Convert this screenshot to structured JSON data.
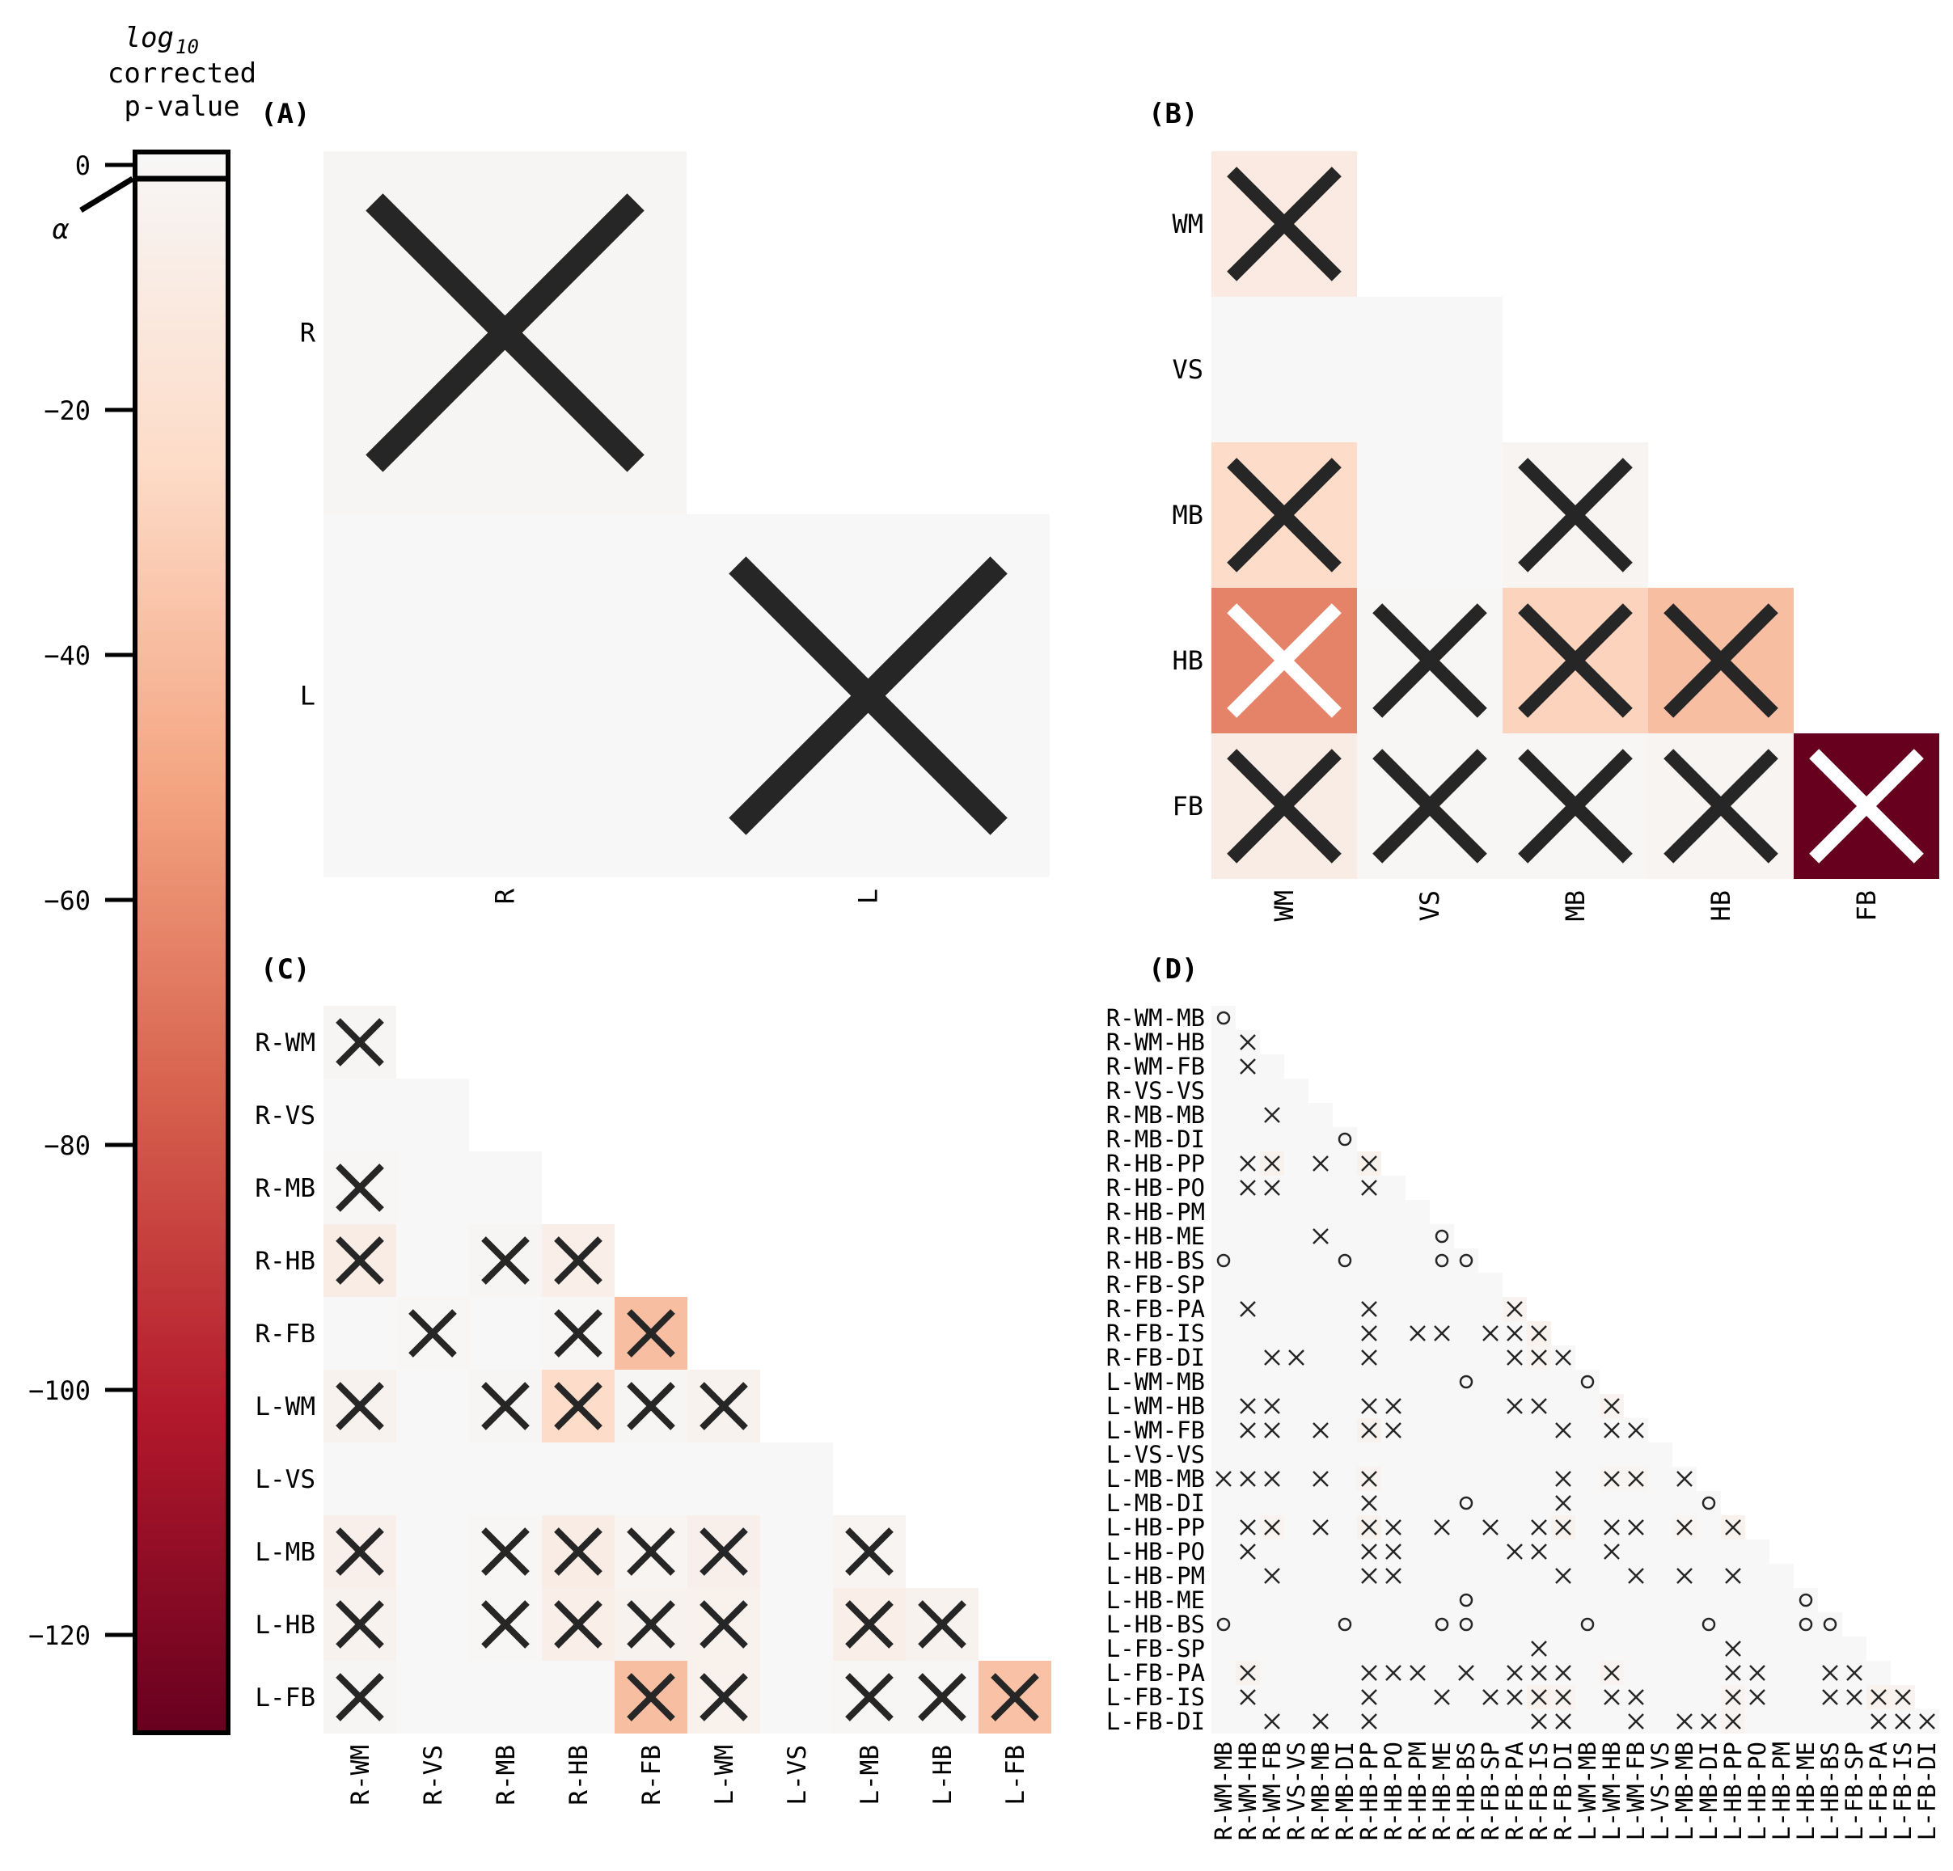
{
  "colorbar": {
    "title_parts": [
      "log",
      "10",
      "corrected",
      "p-value"
    ],
    "alpha_label": "α",
    "ticks": [
      0,
      -20,
      -40,
      -60,
      -80,
      -100,
      -120
    ],
    "range": [
      -130,
      0
    ],
    "colormap_stops": [
      "#67001f",
      "#b2182b",
      "#d6604d",
      "#f4a582",
      "#fddbc7",
      "#f7f7f7"
    ],
    "colormap": "RdBu (lower half, dark red to white)"
  },
  "chart_data": [
    {
      "panel": "(A)",
      "type": "heatmap",
      "categories": [
        "R",
        "L"
      ],
      "cells": [
        {
          "row": 0,
          "col": 0,
          "value": -2,
          "mark": "x"
        },
        {
          "row": 1,
          "col": 0,
          "value": 0,
          "mark": ""
        },
        {
          "row": 1,
          "col": 1,
          "value": 0,
          "mark": "x"
        }
      ]
    },
    {
      "panel": "(B)",
      "type": "heatmap",
      "categories": [
        "WM",
        "VS",
        "MB",
        "HB",
        "FB"
      ],
      "cells": [
        {
          "row": 0,
          "col": 0,
          "value": -12,
          "mark": "x"
        },
        {
          "row": 1,
          "col": 0,
          "value": 0,
          "mark": ""
        },
        {
          "row": 1,
          "col": 1,
          "value": 0,
          "mark": ""
        },
        {
          "row": 2,
          "col": 0,
          "value": -25,
          "mark": "x"
        },
        {
          "row": 2,
          "col": 1,
          "value": 0,
          "mark": ""
        },
        {
          "row": 2,
          "col": 2,
          "value": -3,
          "mark": "x"
        },
        {
          "row": 3,
          "col": 0,
          "value": -65,
          "mark": "x"
        },
        {
          "row": 3,
          "col": 1,
          "value": -1,
          "mark": "x"
        },
        {
          "row": 3,
          "col": 2,
          "value": -30,
          "mark": "x"
        },
        {
          "row": 3,
          "col": 3,
          "value": -40,
          "mark": "x"
        },
        {
          "row": 4,
          "col": 0,
          "value": -10,
          "mark": "x"
        },
        {
          "row": 4,
          "col": 1,
          "value": -1,
          "mark": "x"
        },
        {
          "row": 4,
          "col": 2,
          "value": -1,
          "mark": "x"
        },
        {
          "row": 4,
          "col": 3,
          "value": -3,
          "mark": "x"
        },
        {
          "row": 4,
          "col": 4,
          "value": -130,
          "mark": "x"
        }
      ]
    },
    {
      "panel": "(C)",
      "type": "heatmap",
      "categories": [
        "R-WM",
        "R-VS",
        "R-MB",
        "R-HB",
        "R-FB",
        "L-WM",
        "L-VS",
        "L-MB",
        "L-HB",
        "L-FB"
      ],
      "cells": [
        {
          "row": 0,
          "col": 0,
          "value": -2,
          "mark": "x"
        },
        {
          "row": 1,
          "col": 0,
          "value": 0,
          "mark": ""
        },
        {
          "row": 1,
          "col": 1,
          "value": 0,
          "mark": ""
        },
        {
          "row": 2,
          "col": 0,
          "value": -1,
          "mark": "x"
        },
        {
          "row": 2,
          "col": 1,
          "value": 0,
          "mark": ""
        },
        {
          "row": 2,
          "col": 2,
          "value": 0,
          "mark": ""
        },
        {
          "row": 3,
          "col": 0,
          "value": -10,
          "mark": "x"
        },
        {
          "row": 3,
          "col": 1,
          "value": 0,
          "mark": ""
        },
        {
          "row": 3,
          "col": 2,
          "value": -2,
          "mark": "x"
        },
        {
          "row": 3,
          "col": 3,
          "value": -8,
          "mark": "x"
        },
        {
          "row": 4,
          "col": 0,
          "value": 0,
          "mark": ""
        },
        {
          "row": 4,
          "col": 1,
          "value": -1,
          "mark": "x"
        },
        {
          "row": 4,
          "col": 2,
          "value": 0,
          "mark": ""
        },
        {
          "row": 4,
          "col": 3,
          "value": -1,
          "mark": "x"
        },
        {
          "row": 4,
          "col": 4,
          "value": -40,
          "mark": "x"
        },
        {
          "row": 5,
          "col": 0,
          "value": -5,
          "mark": "x"
        },
        {
          "row": 5,
          "col": 1,
          "value": 0,
          "mark": ""
        },
        {
          "row": 5,
          "col": 2,
          "value": -2,
          "mark": "x"
        },
        {
          "row": 5,
          "col": 3,
          "value": -25,
          "mark": "x"
        },
        {
          "row": 5,
          "col": 4,
          "value": -2,
          "mark": "x"
        },
        {
          "row": 5,
          "col": 5,
          "value": -5,
          "mark": "x"
        },
        {
          "row": 6,
          "col": 0,
          "value": 0,
          "mark": ""
        },
        {
          "row": 6,
          "col": 1,
          "value": 0,
          "mark": ""
        },
        {
          "row": 6,
          "col": 2,
          "value": 0,
          "mark": ""
        },
        {
          "row": 6,
          "col": 3,
          "value": 0,
          "mark": ""
        },
        {
          "row": 6,
          "col": 4,
          "value": 0,
          "mark": ""
        },
        {
          "row": 6,
          "col": 5,
          "value": 0,
          "mark": ""
        },
        {
          "row": 6,
          "col": 6,
          "value": 0,
          "mark": ""
        },
        {
          "row": 7,
          "col": 0,
          "value": -7,
          "mark": "x"
        },
        {
          "row": 7,
          "col": 1,
          "value": 0,
          "mark": ""
        },
        {
          "row": 7,
          "col": 2,
          "value": -1,
          "mark": "x"
        },
        {
          "row": 7,
          "col": 3,
          "value": -10,
          "mark": "x"
        },
        {
          "row": 7,
          "col": 4,
          "value": -3,
          "mark": "x"
        },
        {
          "row": 7,
          "col": 5,
          "value": -7,
          "mark": "x"
        },
        {
          "row": 7,
          "col": 6,
          "value": 0,
          "mark": ""
        },
        {
          "row": 7,
          "col": 7,
          "value": -3,
          "mark": "x"
        },
        {
          "row": 8,
          "col": 0,
          "value": -5,
          "mark": "x"
        },
        {
          "row": 8,
          "col": 1,
          "value": 0,
          "mark": ""
        },
        {
          "row": 8,
          "col": 2,
          "value": -1,
          "mark": "x"
        },
        {
          "row": 8,
          "col": 3,
          "value": -8,
          "mark": "x"
        },
        {
          "row": 8,
          "col": 4,
          "value": -5,
          "mark": "x"
        },
        {
          "row": 8,
          "col": 5,
          "value": -6,
          "mark": "x"
        },
        {
          "row": 8,
          "col": 6,
          "value": 0,
          "mark": ""
        },
        {
          "row": 8,
          "col": 7,
          "value": -8,
          "mark": "x"
        },
        {
          "row": 8,
          "col": 8,
          "value": -5,
          "mark": "x"
        },
        {
          "row": 9,
          "col": 0,
          "value": -2,
          "mark": "x"
        },
        {
          "row": 9,
          "col": 1,
          "value": 0,
          "mark": ""
        },
        {
          "row": 9,
          "col": 2,
          "value": 0,
          "mark": ""
        },
        {
          "row": 9,
          "col": 3,
          "value": 0,
          "mark": ""
        },
        {
          "row": 9,
          "col": 4,
          "value": -40,
          "mark": "x"
        },
        {
          "row": 9,
          "col": 5,
          "value": -6,
          "mark": "x"
        },
        {
          "row": 9,
          "col": 6,
          "value": 0,
          "mark": ""
        },
        {
          "row": 9,
          "col": 7,
          "value": -1,
          "mark": "x"
        },
        {
          "row": 9,
          "col": 8,
          "value": -1,
          "mark": "x"
        },
        {
          "row": 9,
          "col": 9,
          "value": -38,
          "mark": "x"
        }
      ]
    },
    {
      "panel": "(D)",
      "type": "heatmap",
      "categories": [
        "R-WM-MB",
        "R-WM-HB",
        "R-WM-FB",
        "R-VS-VS",
        "R-MB-MB",
        "R-MB-DI",
        "R-HB-PP",
        "R-HB-PO",
        "R-HB-PM",
        "R-HB-ME",
        "R-HB-BS",
        "R-FB-SP",
        "R-FB-PA",
        "R-FB-IS",
        "R-FB-DI",
        "L-WM-MB",
        "L-WM-HB",
        "L-WM-FB",
        "L-VS-VS",
        "L-MB-MB",
        "L-MB-DI",
        "L-HB-PP",
        "L-HB-PO",
        "L-HB-PM",
        "L-HB-ME",
        "L-HB-BS",
        "L-FB-SP",
        "L-FB-PA",
        "L-FB-IS",
        "L-FB-DI"
      ],
      "marks": [
        [
          0,
          0,
          "o"
        ],
        [
          1,
          1,
          "x"
        ],
        [
          2,
          1,
          "x"
        ],
        [
          4,
          2,
          "x"
        ],
        [
          5,
          5,
          "o"
        ],
        [
          6,
          1,
          "x"
        ],
        [
          6,
          2,
          "x"
        ],
        [
          6,
          4,
          "x"
        ],
        [
          6,
          6,
          "x"
        ],
        [
          7,
          1,
          "x"
        ],
        [
          7,
          2,
          "x"
        ],
        [
          7,
          6,
          "x"
        ],
        [
          9,
          4,
          "x"
        ],
        [
          9,
          9,
          "o"
        ],
        [
          10,
          0,
          "o"
        ],
        [
          10,
          5,
          "o"
        ],
        [
          10,
          9,
          "o"
        ],
        [
          10,
          10,
          "o"
        ],
        [
          12,
          1,
          "x"
        ],
        [
          12,
          6,
          "x"
        ],
        [
          12,
          12,
          "x"
        ],
        [
          13,
          6,
          "x"
        ],
        [
          13,
          8,
          "x"
        ],
        [
          13,
          9,
          "x"
        ],
        [
          13,
          11,
          "x"
        ],
        [
          13,
          12,
          "x"
        ],
        [
          13,
          13,
          "x"
        ],
        [
          14,
          2,
          "x"
        ],
        [
          14,
          3,
          "x"
        ],
        [
          14,
          6,
          "x"
        ],
        [
          14,
          12,
          "x"
        ],
        [
          14,
          13,
          "x"
        ],
        [
          14,
          14,
          "x"
        ],
        [
          15,
          10,
          "o"
        ],
        [
          15,
          15,
          "o"
        ],
        [
          16,
          1,
          "x"
        ],
        [
          16,
          2,
          "x"
        ],
        [
          16,
          6,
          "x"
        ],
        [
          16,
          7,
          "x"
        ],
        [
          16,
          12,
          "x"
        ],
        [
          16,
          13,
          "x"
        ],
        [
          16,
          16,
          "x"
        ],
        [
          17,
          1,
          "x"
        ],
        [
          17,
          2,
          "x"
        ],
        [
          17,
          4,
          "x"
        ],
        [
          17,
          6,
          "x"
        ],
        [
          17,
          7,
          "x"
        ],
        [
          17,
          14,
          "x"
        ],
        [
          17,
          16,
          "x"
        ],
        [
          17,
          17,
          "x"
        ],
        [
          19,
          0,
          "x"
        ],
        [
          19,
          1,
          "x"
        ],
        [
          19,
          2,
          "x"
        ],
        [
          19,
          4,
          "x"
        ],
        [
          19,
          6,
          "x"
        ],
        [
          19,
          14,
          "x"
        ],
        [
          19,
          16,
          "x"
        ],
        [
          19,
          17,
          "x"
        ],
        [
          19,
          19,
          "x"
        ],
        [
          20,
          6,
          "x"
        ],
        [
          20,
          10,
          "o"
        ],
        [
          20,
          14,
          "x"
        ],
        [
          20,
          20,
          "o"
        ],
        [
          21,
          1,
          "x"
        ],
        [
          21,
          2,
          "x"
        ],
        [
          21,
          4,
          "x"
        ],
        [
          21,
          6,
          "x"
        ],
        [
          21,
          7,
          "x"
        ],
        [
          21,
          9,
          "x"
        ],
        [
          21,
          11,
          "x"
        ],
        [
          21,
          13,
          "x"
        ],
        [
          21,
          14,
          "x"
        ],
        [
          21,
          16,
          "x"
        ],
        [
          21,
          17,
          "x"
        ],
        [
          21,
          19,
          "x"
        ],
        [
          21,
          21,
          "x"
        ],
        [
          22,
          1,
          "x"
        ],
        [
          22,
          6,
          "x"
        ],
        [
          22,
          7,
          "x"
        ],
        [
          22,
          12,
          "x"
        ],
        [
          22,
          13,
          "x"
        ],
        [
          22,
          16,
          "x"
        ],
        [
          23,
          2,
          "x"
        ],
        [
          23,
          6,
          "x"
        ],
        [
          23,
          7,
          "x"
        ],
        [
          23,
          14,
          "x"
        ],
        [
          23,
          17,
          "x"
        ],
        [
          23,
          19,
          "x"
        ],
        [
          23,
          21,
          "x"
        ],
        [
          24,
          10,
          "o"
        ],
        [
          24,
          24,
          "o"
        ],
        [
          25,
          0,
          "o"
        ],
        [
          25,
          5,
          "o"
        ],
        [
          25,
          9,
          "o"
        ],
        [
          25,
          10,
          "o"
        ],
        [
          25,
          15,
          "o"
        ],
        [
          25,
          20,
          "o"
        ],
        [
          25,
          24,
          "o"
        ],
        [
          25,
          25,
          "o"
        ],
        [
          26,
          13,
          "x"
        ],
        [
          26,
          21,
          "x"
        ],
        [
          27,
          1,
          "x"
        ],
        [
          27,
          6,
          "x"
        ],
        [
          27,
          7,
          "x"
        ],
        [
          27,
          8,
          "x"
        ],
        [
          27,
          10,
          "x"
        ],
        [
          27,
          12,
          "x"
        ],
        [
          27,
          13,
          "x"
        ],
        [
          27,
          14,
          "x"
        ],
        [
          27,
          16,
          "x"
        ],
        [
          27,
          21,
          "x"
        ],
        [
          27,
          22,
          "x"
        ],
        [
          27,
          25,
          "x"
        ],
        [
          27,
          26,
          "x"
        ],
        [
          28,
          1,
          "x"
        ],
        [
          28,
          6,
          "x"
        ],
        [
          28,
          9,
          "x"
        ],
        [
          28,
          11,
          "x"
        ],
        [
          28,
          12,
          "x"
        ],
        [
          28,
          13,
          "x"
        ],
        [
          28,
          14,
          "x"
        ],
        [
          28,
          16,
          "x"
        ],
        [
          28,
          17,
          "x"
        ],
        [
          28,
          21,
          "x"
        ],
        [
          28,
          22,
          "x"
        ],
        [
          28,
          25,
          "x"
        ],
        [
          28,
          26,
          "x"
        ],
        [
          28,
          27,
          "x"
        ],
        [
          28,
          28,
          "x"
        ],
        [
          29,
          2,
          "x"
        ],
        [
          29,
          4,
          "x"
        ],
        [
          29,
          6,
          "x"
        ],
        [
          29,
          13,
          "x"
        ],
        [
          29,
          14,
          "x"
        ],
        [
          29,
          17,
          "x"
        ],
        [
          29,
          19,
          "x"
        ],
        [
          29,
          20,
          "x"
        ],
        [
          29,
          21,
          "x"
        ],
        [
          29,
          27,
          "x"
        ],
        [
          29,
          28,
          "x"
        ],
        [
          29,
          29,
          "x"
        ]
      ],
      "colored_cells": [
        [
          6,
          2,
          -6
        ],
        [
          6,
          6,
          -6
        ],
        [
          12,
          12,
          -4
        ],
        [
          13,
          13,
          -6
        ],
        [
          14,
          13,
          -3
        ],
        [
          16,
          16,
          -4
        ],
        [
          17,
          6,
          -5
        ],
        [
          19,
          6,
          -4
        ],
        [
          19,
          16,
          -3
        ],
        [
          19,
          17,
          -3
        ],
        [
          21,
          2,
          -4
        ],
        [
          21,
          6,
          -5
        ],
        [
          21,
          14,
          -5
        ],
        [
          21,
          19,
          -3
        ],
        [
          21,
          21,
          -5
        ],
        [
          27,
          1,
          -5
        ],
        [
          27,
          16,
          -4
        ],
        [
          28,
          13,
          -6
        ],
        [
          28,
          14,
          -4
        ],
        [
          28,
          21,
          -4
        ],
        [
          28,
          27,
          -6
        ],
        [
          28,
          28,
          -4
        ],
        [
          29,
          21,
          -4
        ]
      ]
    }
  ]
}
